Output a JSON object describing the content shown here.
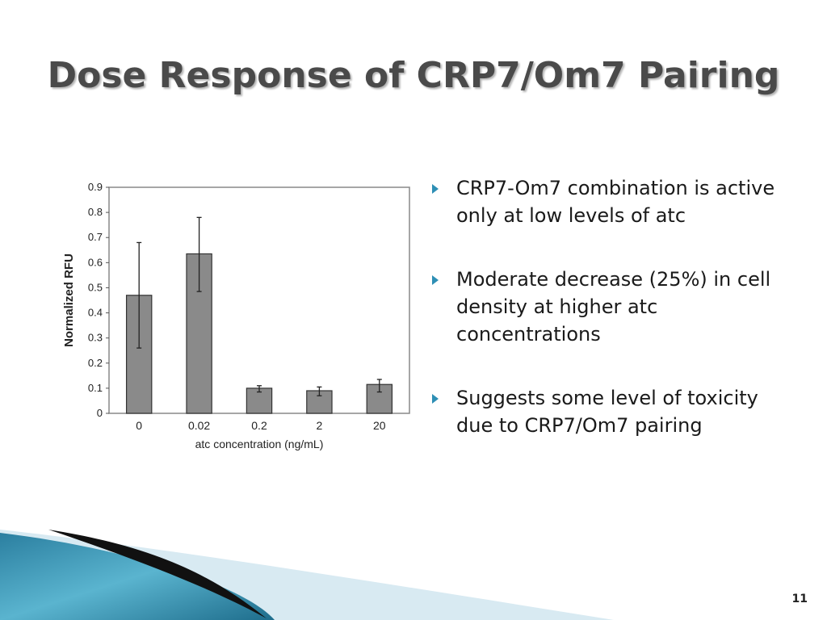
{
  "slide": {
    "title": "Dose Response of CRP7/Om7 Pairing",
    "page_number": "11",
    "bullets": [
      "CRP7-Om7 combination is active only at low levels of atc",
      "Moderate decrease (25%) in cell density at higher atc concentrations",
      "Suggests some level of toxicity due to CRP7/Om7 pairing"
    ]
  },
  "colors": {
    "bar_fill": "#8a8a8a",
    "bullet_arrow": "#2e8fb5",
    "title": "#4a4a4a"
  },
  "chart_data": {
    "type": "bar",
    "title": "",
    "xlabel": "atc concentration (ng/mL)",
    "ylabel": "Normalized RFU",
    "categories": [
      "0",
      "0.02",
      "0.2",
      "2",
      "20"
    ],
    "values": [
      0.47,
      0.635,
      0.1,
      0.09,
      0.115
    ],
    "error_low": [
      0.26,
      0.485,
      0.085,
      0.07,
      0.085
    ],
    "error_high": [
      0.68,
      0.78,
      0.11,
      0.105,
      0.135
    ],
    "ylim": [
      0,
      0.9
    ],
    "yticks": [
      "0",
      "0.1",
      "0.2",
      "0.3",
      "0.4",
      "0.5",
      "0.6",
      "0.7",
      "0.8",
      "0.9"
    ],
    "grid": false,
    "legend": "none"
  }
}
